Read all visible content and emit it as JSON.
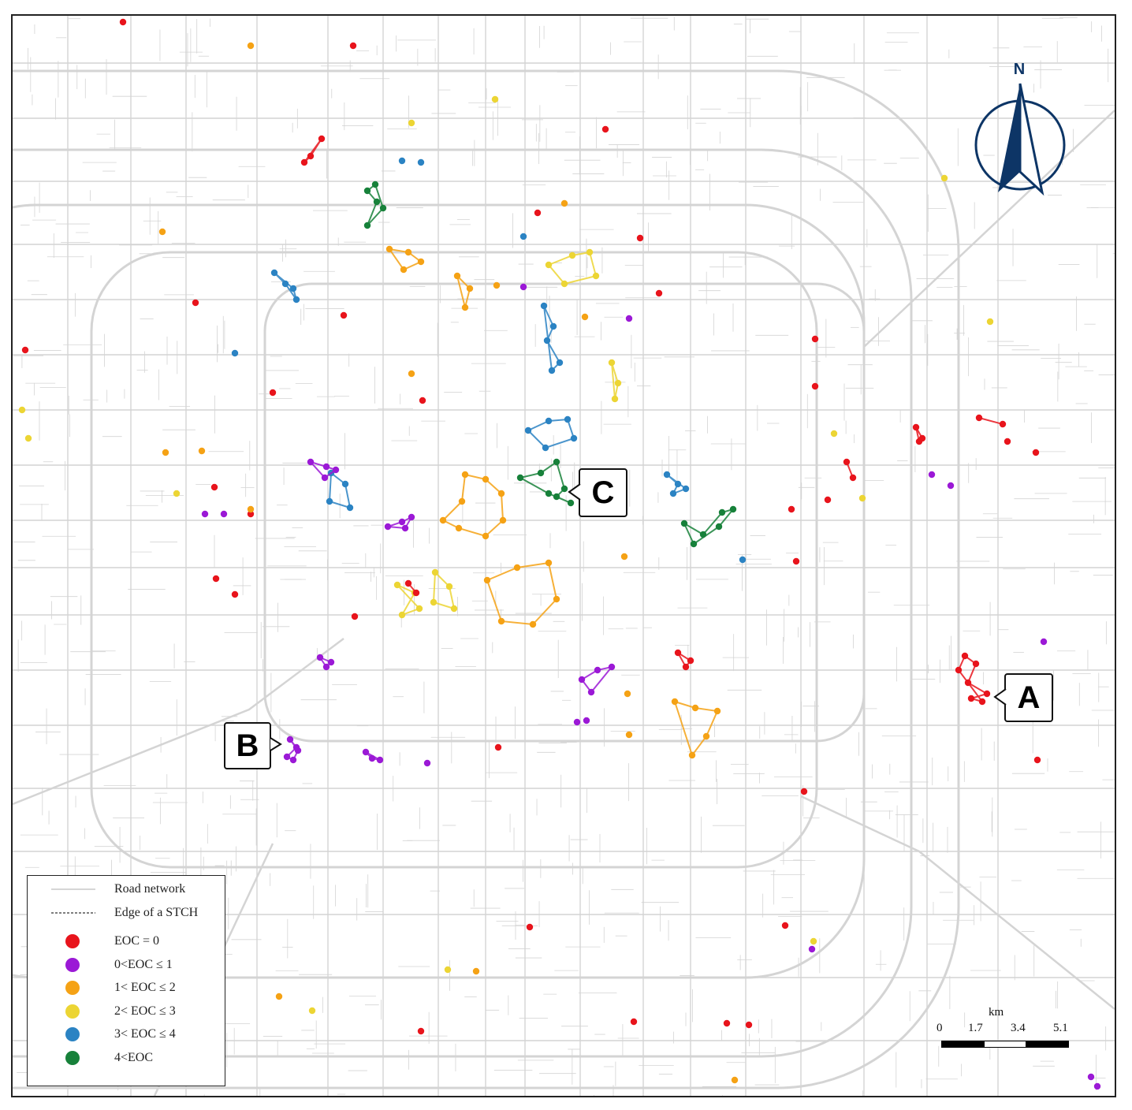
{
  "map": {
    "background": "#ffffff",
    "road_color": "#d4d4d4"
  },
  "callouts": {
    "a": "A",
    "b": "B",
    "c": "C"
  },
  "north_arrow": {
    "label": "N",
    "icon": "north-arrow-icon",
    "color": "#0d3566"
  },
  "legend": {
    "road_network": "Road network",
    "stch_edge": "Edge of a STCH",
    "classes": [
      {
        "label": "EOC = 0",
        "color": "#e8141c"
      },
      {
        "label": "0<EOC ≤  1",
        "color": "#9b19d6"
      },
      {
        "label": "1< EOC ≤  2",
        "color": "#f5a215"
      },
      {
        "label": "2< EOC ≤  3",
        "color": "#ecd534"
      },
      {
        "label": "3< EOC ≤  4",
        "color": "#2b83c3"
      },
      {
        "label": "4<EOC",
        "color": "#17813a"
      }
    ]
  },
  "scale_bar": {
    "unit": "km",
    "ticks": [
      "0",
      "1.7",
      "3.4",
      "5.1"
    ]
  }
}
